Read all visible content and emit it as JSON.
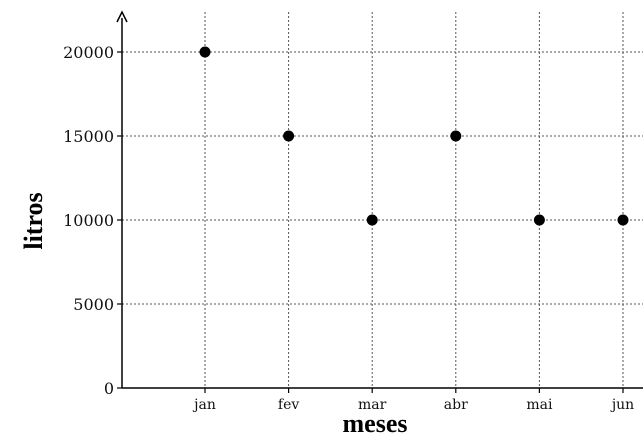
{
  "chart_data": {
    "type": "scatter",
    "categories": [
      "jan",
      "fev",
      "mar",
      "abr",
      "mai",
      "jun"
    ],
    "values": [
      20000,
      15000,
      10000,
      15000,
      10000,
      10000
    ],
    "title": "",
    "xlabel": "meses",
    "ylabel": "litros",
    "ylim": [
      0,
      20000
    ],
    "yticks": [
      "0",
      "5000",
      "10000",
      "15000",
      "20000"
    ],
    "grid": true
  }
}
